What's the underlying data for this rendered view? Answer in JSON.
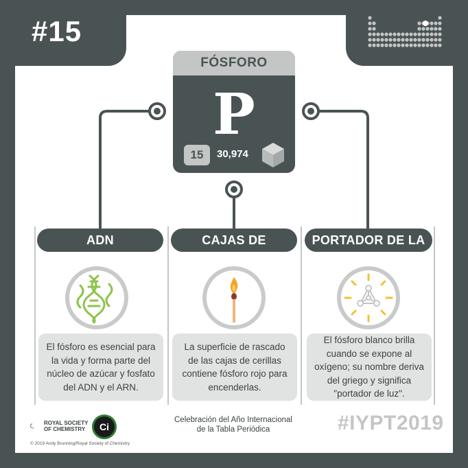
{
  "header": {
    "number": "#15"
  },
  "element": {
    "name": "FÓSFORO",
    "symbol": "P",
    "atomic_number": "15",
    "atomic_mass": "30,974"
  },
  "columns": [
    {
      "title": "ADN",
      "text": "El fósforo es esencial para la vida y forma parte del núcleo de azúcar y fosfato del ADN y el ARN.",
      "icon": "dna-icon"
    },
    {
      "title": "CAJAS DE CERILLAS",
      "text": "La superficie de rascado de las cajas de cerillas contiene fósforo rojo para encenderlas.",
      "icon": "match-icon"
    },
    {
      "title": "PORTADOR DE LA LUZ",
      "text": "El fósforo blanco brilla cuando se expone al oxígeno; su nombre deriva del griego y significa \"portador de luz\".",
      "icon": "glowing-molecule-icon"
    }
  ],
  "footer": {
    "rsc_line1": "ROYAL SOCIETY",
    "rsc_line2": "OF CHEMISTRY",
    "ci_label": "Ci",
    "copyright": "© 2019 Andy Brunning/Royal Society of Chemistry",
    "celebration_line1": "Celebración del Año Internacional",
    "celebration_line2": "de la Tabla Periódica",
    "hashtag": "#IYPT2019"
  },
  "colors": {
    "dark": "#4a5354",
    "light_gray": "#c4c6c6",
    "dna_green": "#8bc34a",
    "flame_orange": "#f4a42a",
    "glow_yellow": "#f2c230"
  }
}
